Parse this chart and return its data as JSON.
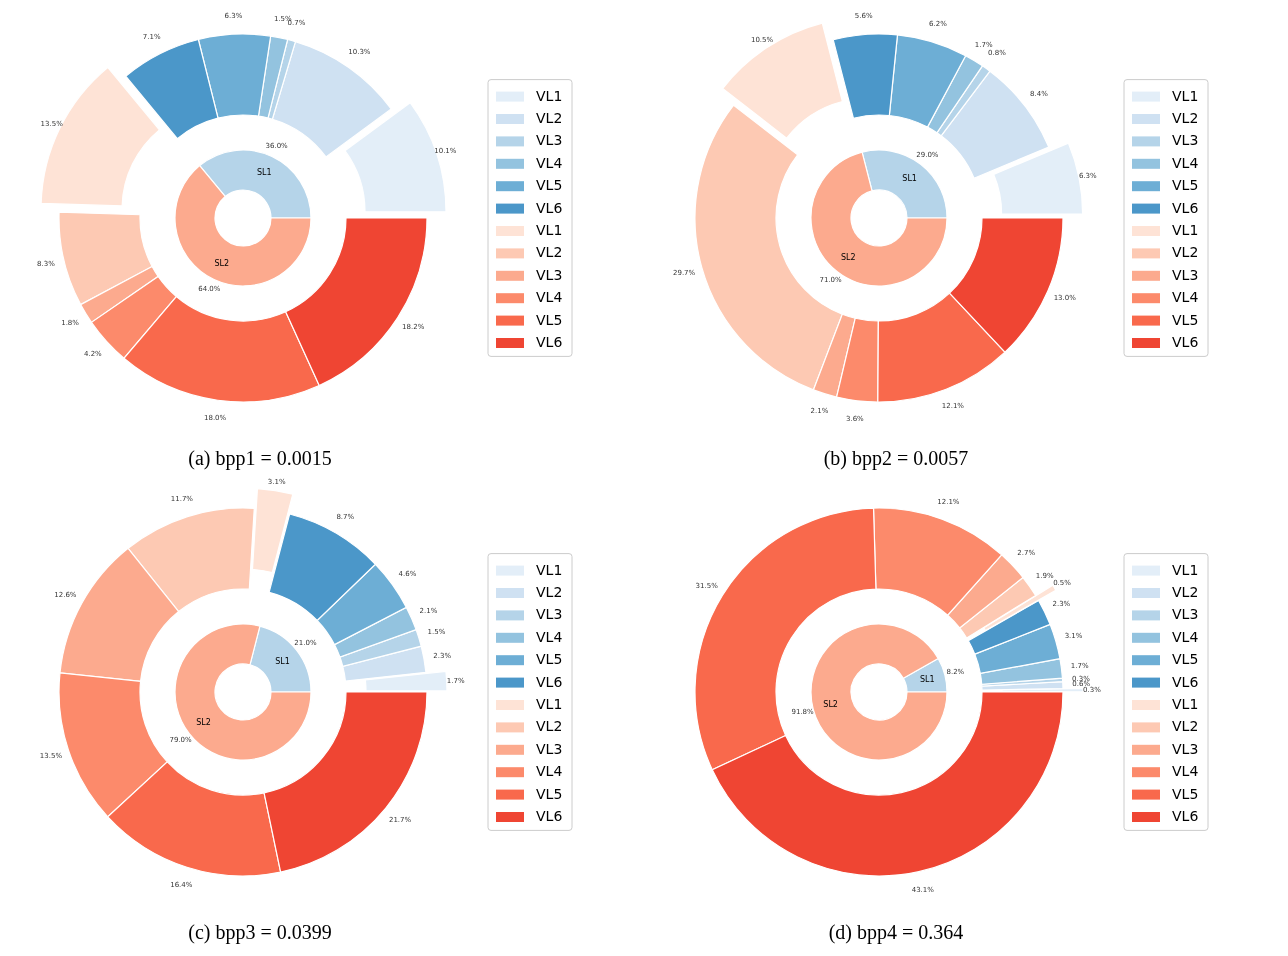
{
  "chart_data": [
    {
      "type": "donut",
      "categories": [
        "SL1",
        "SL2"
      ],
      "values": [
        36.0,
        64.0
      ],
      "colors": [
        "#b5d4e9",
        "#fcaa8e"
      ],
      "value_labels": [
        "36.0%",
        "64.0%"
      ]
    },
    {
      "type": "donut",
      "title": "(a) bpp1 = 0.0015",
      "legend": "right",
      "categories": [
        "VL1",
        "VL2",
        "VL3",
        "VL4",
        "VL5",
        "VL6",
        "VL1",
        "VL2",
        "VL3",
        "VL4",
        "VL5",
        "VL6"
      ],
      "values": [
        10.1,
        10.3,
        0.7,
        1.5,
        6.3,
        7.1,
        13.5,
        8.3,
        1.8,
        4.2,
        18.0,
        18.2
      ],
      "colors": [
        "#e3eef8",
        "#cfe1f2",
        "#b5d4e9",
        "#93c3df",
        "#6daed5",
        "#4b97c9",
        "#fee3d6",
        "#fdc9b3",
        "#fcaa8e",
        "#fc8a6b",
        "#f9694c",
        "#ef4533"
      ],
      "value_labels": [
        "10.1%",
        "10.3%",
        "0.7%",
        "1.5%",
        "6.3%",
        "7.1%",
        "13.5%",
        "8.3%",
        "1.8%",
        "4.2%",
        "18.0%",
        "18.2%"
      ]
    },
    {
      "type": "donut",
      "categories": [
        "SL1",
        "SL2"
      ],
      "values": [
        29.0,
        71.0
      ],
      "colors": [
        "#b5d4e9",
        "#fcaa8e"
      ],
      "value_labels": [
        "29.0%",
        "71.0%"
      ]
    },
    {
      "type": "donut",
      "title": "(b) bpp2 = 0.0057",
      "legend": "right",
      "categories": [
        "VL1",
        "VL2",
        "VL3",
        "VL4",
        "VL5",
        "VL6",
        "VL1",
        "VL2",
        "VL3",
        "VL4",
        "VL5",
        "VL6"
      ],
      "values": [
        6.3,
        8.4,
        0.8,
        1.7,
        6.2,
        5.6,
        10.5,
        29.7,
        2.1,
        3.6,
        12.1,
        13.0
      ],
      "colors": [
        "#e3eef8",
        "#cfe1f2",
        "#b5d4e9",
        "#93c3df",
        "#6daed5",
        "#4b97c9",
        "#fee3d6",
        "#fdc9b3",
        "#fcaa8e",
        "#fc8a6b",
        "#f9694c",
        "#ef4533"
      ],
      "value_labels": [
        "6.3%",
        "8.4%",
        "0.8%",
        "1.7%",
        "6.2%",
        "5.6%",
        "10.5%",
        "29.7%",
        "2.1%",
        "3.6%",
        "12.1%",
        "13.0%"
      ]
    },
    {
      "type": "donut",
      "categories": [
        "SL1",
        "SL2"
      ],
      "values": [
        21.0,
        79.0
      ],
      "colors": [
        "#b5d4e9",
        "#fcaa8e"
      ],
      "value_labels": [
        "21.0%",
        "79.0%"
      ]
    },
    {
      "type": "donut",
      "title": "(c) bpp3 = 0.0399",
      "legend": "right",
      "categories": [
        "VL1",
        "VL2",
        "VL3",
        "VL4",
        "VL5",
        "VL6",
        "VL1",
        "VL2",
        "VL3",
        "VL4",
        "VL5",
        "VL6"
      ],
      "values": [
        1.7,
        2.3,
        1.5,
        2.1,
        4.6,
        8.7,
        3.1,
        11.7,
        12.6,
        13.5,
        16.4,
        21.7
      ],
      "colors": [
        "#e3eef8",
        "#cfe1f2",
        "#b5d4e9",
        "#93c3df",
        "#6daed5",
        "#4b97c9",
        "#fee3d6",
        "#fdc9b3",
        "#fcaa8e",
        "#fc8a6b",
        "#f9694c",
        "#ef4533"
      ],
      "value_labels": [
        "1.7%",
        "2.3%",
        "1.5%",
        "2.1%",
        "4.6%",
        "8.7%",
        "3.1%",
        "11.7%",
        "12.6%",
        "13.5%",
        "16.4%",
        "21.7%"
      ]
    },
    {
      "type": "donut",
      "categories": [
        "SL1",
        "SL2"
      ],
      "values": [
        8.2,
        91.8
      ],
      "colors": [
        "#b5d4e9",
        "#fcaa8e"
      ],
      "value_labels": [
        "8.2%",
        "91.8%"
      ]
    },
    {
      "type": "donut",
      "title": "(d) bpp4 = 0.364",
      "legend": "right",
      "categories": [
        "VL1",
        "VL2",
        "VL3",
        "VL4",
        "VL5",
        "VL6",
        "VL1",
        "VL2",
        "VL3",
        "VL4",
        "VL5",
        "VL6"
      ],
      "values": [
        0.3,
        0.6,
        0.3,
        1.7,
        3.1,
        2.3,
        0.5,
        1.9,
        2.7,
        12.1,
        31.5,
        43.1
      ],
      "colors": [
        "#e3eef8",
        "#cfe1f2",
        "#b5d4e9",
        "#93c3df",
        "#6daed5",
        "#4b97c9",
        "#fee3d6",
        "#fdc9b3",
        "#fcaa8e",
        "#fc8a6b",
        "#f9694c",
        "#ef4533"
      ],
      "value_labels": [
        "0.3%",
        "0.6%",
        "0.3%",
        "1.7%",
        "3.1%",
        "2.3%",
        "0.5%",
        "1.9%",
        "2.7%",
        "12.1%",
        "31.5%",
        "43.1%"
      ]
    }
  ]
}
